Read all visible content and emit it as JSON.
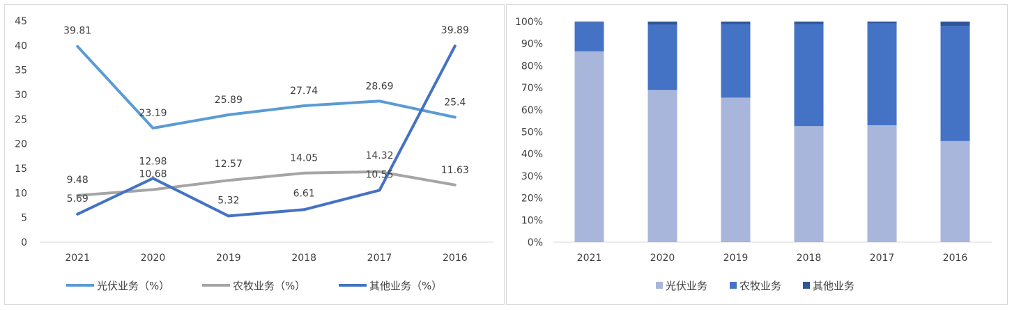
{
  "chart_data": [
    {
      "type": "line",
      "categories": [
        "2021",
        "2020",
        "2019",
        "2018",
        "2017",
        "2016"
      ],
      "ylim": [
        0,
        45
      ],
      "yticks": [
        "0",
        "5",
        "10",
        "15",
        "20",
        "25",
        "30",
        "35",
        "40",
        "45"
      ],
      "grid": false,
      "legend_position": "bottom",
      "series": [
        {
          "name": "光伏业务（%）",
          "color": "#5b9bd5",
          "values": [
            39.81,
            23.19,
            25.89,
            27.74,
            28.69,
            25.4
          ],
          "labels": [
            "39.81",
            "23.19",
            "25.89",
            "27.74",
            "28.69",
            "25.4"
          ]
        },
        {
          "name": "农牧业务（%）",
          "color": "#a5a5a5",
          "values": [
            9.48,
            10.68,
            12.57,
            14.05,
            14.32,
            11.63
          ],
          "labels": [
            "9.48",
            "10.68",
            "12.57",
            "14.05",
            "14.32",
            "11.63"
          ]
        },
        {
          "name": "其他业务（%）",
          "color": "#4472c4",
          "values": [
            5.69,
            12.98,
            5.32,
            6.61,
            10.55,
            39.89
          ],
          "labels": [
            "5.69",
            "12.98",
            "5.32",
            "6.61",
            "10.55",
            "39.89"
          ]
        }
      ]
    },
    {
      "type": "bar",
      "stacked": "percent",
      "categories": [
        "2021",
        "2020",
        "2019",
        "2018",
        "2017",
        "2016"
      ],
      "ylim": [
        0,
        100
      ],
      "yticks": [
        "0%",
        "10%",
        "20%",
        "30%",
        "40%",
        "50%",
        "60%",
        "70%",
        "80%",
        "90%",
        "100%"
      ],
      "grid": false,
      "legend_position": "bottom",
      "series": [
        {
          "name": "光伏业务",
          "color": "#a9b6db",
          "values": [
            86.5,
            69.0,
            65.5,
            52.6,
            53.0,
            45.8
          ]
        },
        {
          "name": "农牧业务",
          "color": "#4472c4",
          "values": [
            13.1,
            29.6,
            33.4,
            46.3,
            46.1,
            52.3
          ]
        },
        {
          "name": "其他业务",
          "color": "#2f5597",
          "values": [
            0.4,
            1.4,
            1.1,
            1.1,
            0.9,
            1.9
          ]
        }
      ]
    }
  ]
}
